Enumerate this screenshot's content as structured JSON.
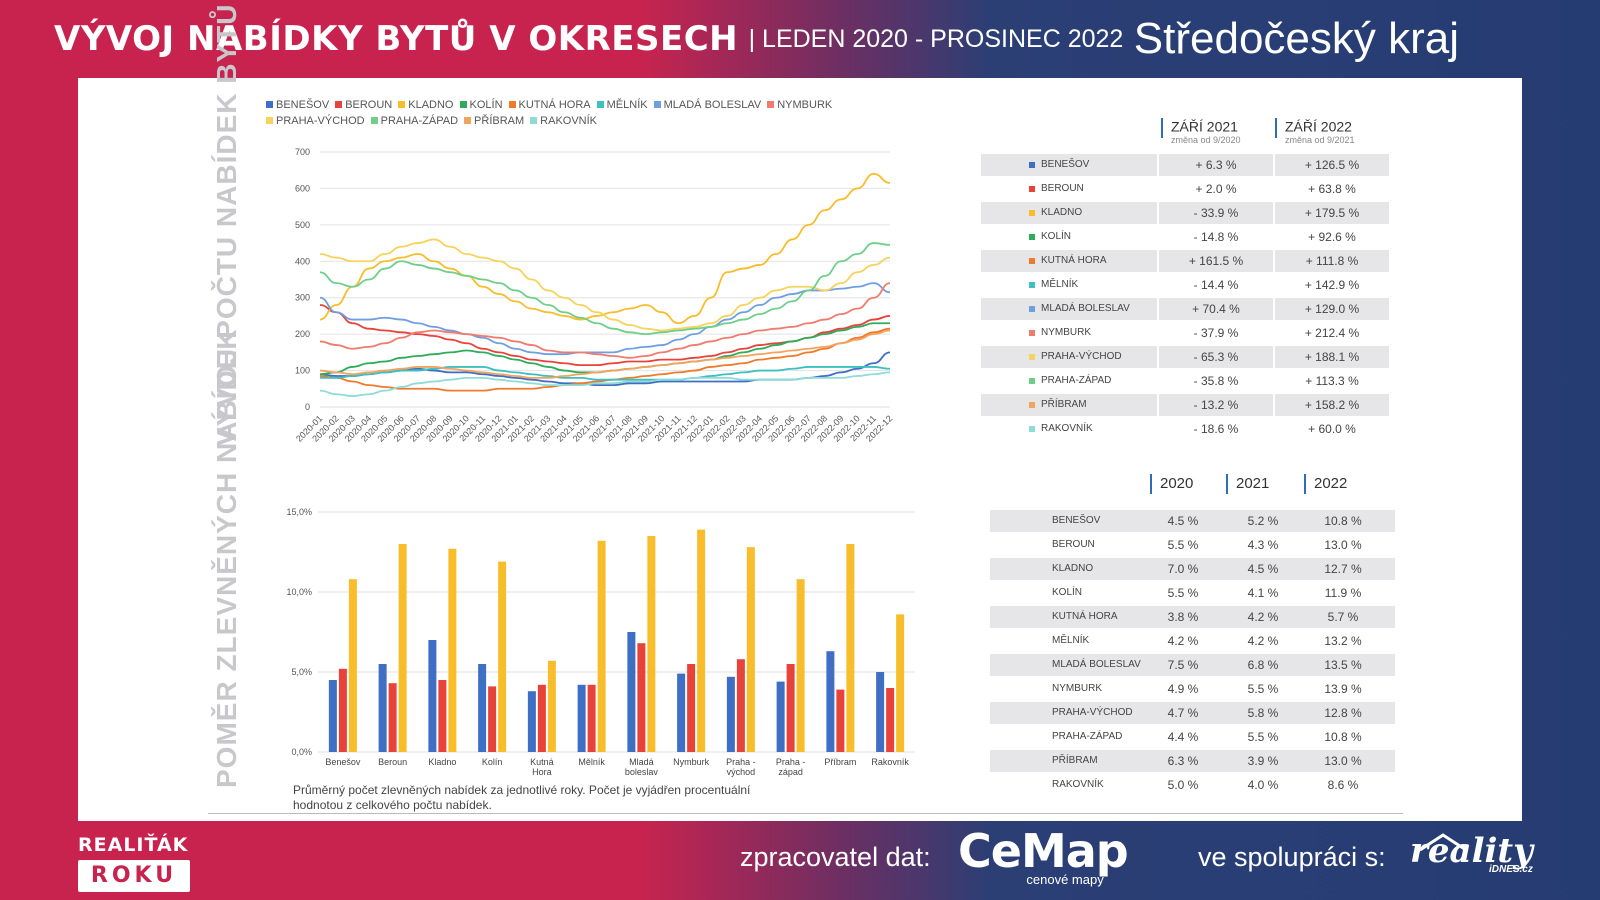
{
  "header": {
    "title": "VÝVOJ NABÍDKY BYTŮ V OKRESECH",
    "period": "| LEDEN 2020 - PROSINEC 2022",
    "region": "Středočeský kraj"
  },
  "side_titles": {
    "top": "VÝVOJ POČTU NABÍDEK BYTŮ V INZERCI",
    "bottom": "POMĚR ZLEVNĚNÝCH NABÍDEK"
  },
  "colors": {
    "BENEŠOV": "#3f6fc4",
    "BEROUN": "#e8433b",
    "KLADNO": "#f7bd2b",
    "KOLÍN": "#2eab5b",
    "KUTNÁ HORA": "#f07a2c",
    "MĚLNÍK": "#3cc0c0",
    "MLADÁ BOLESLAV": "#6f9fe0",
    "NYMBURK": "#f07b6e",
    "PRAHA-VÝCHOD": "#f6d35c",
    "PRAHA-ZÁPAD": "#6fcf8a",
    "PŘÍBRAM": "#f4a35f",
    "RAKOVNÍK": "#8fdbd8"
  },
  "chart_data": [
    {
      "type": "line",
      "ylim": [
        0,
        700
      ],
      "y_ticks": [
        "0",
        "100",
        "200",
        "300",
        "400",
        "500",
        "600",
        "700"
      ],
      "x": [
        "2020-01",
        "2020-02",
        "2020-03",
        "2020-04",
        "2020-05",
        "2020-06",
        "2020-07",
        "2020-08",
        "2020-09",
        "2020-10",
        "2020-11",
        "2020-12",
        "2021-01",
        "2021-02",
        "2021-03",
        "2021-04",
        "2021-05",
        "2021-06",
        "2021-07",
        "2021-08",
        "2021-09",
        "2021-10",
        "2021-11",
        "2021-12",
        "2022-01",
        "2022-02",
        "2022-03",
        "2022-04",
        "2022-05",
        "2022-06",
        "2022-07",
        "2022-08",
        "2022-09",
        "2022-10",
        "2022-11",
        "2022-12"
      ],
      "legend": [
        "BENEŠOV",
        "BEROUN",
        "KLADNO",
        "KOLÍN",
        "KUTNÁ HORA",
        "MĚLNÍK",
        "MLADÁ BOLESLAV",
        "NYMBURK",
        "PRAHA-VÝCHOD",
        "PRAHA-ZÁPAD",
        "PŘÍBRAM",
        "RAKOVNÍK"
      ],
      "series": [
        {
          "name": "BENEŠOV",
          "values": [
            90,
            85,
            85,
            90,
            95,
            100,
            105,
            100,
            95,
            95,
            90,
            85,
            80,
            75,
            70,
            65,
            65,
            60,
            60,
            65,
            65,
            70,
            70,
            70,
            70,
            70,
            70,
            75,
            75,
            75,
            80,
            85,
            95,
            105,
            120,
            150
          ]
        },
        {
          "name": "BEROUN",
          "values": [
            280,
            260,
            230,
            215,
            210,
            205,
            200,
            195,
            185,
            175,
            160,
            150,
            140,
            130,
            125,
            120,
            115,
            115,
            120,
            125,
            125,
            130,
            130,
            135,
            140,
            150,
            160,
            170,
            175,
            180,
            190,
            205,
            215,
            225,
            240,
            250
          ]
        },
        {
          "name": "KLADNO",
          "values": [
            240,
            280,
            330,
            380,
            400,
            410,
            420,
            400,
            380,
            360,
            330,
            310,
            290,
            270,
            260,
            250,
            240,
            250,
            260,
            270,
            280,
            260,
            230,
            250,
            300,
            370,
            380,
            390,
            420,
            460,
            500,
            540,
            570,
            600,
            640,
            615
          ]
        },
        {
          "name": "KOLÍN",
          "values": [
            90,
            95,
            110,
            120,
            125,
            135,
            140,
            145,
            150,
            155,
            150,
            140,
            130,
            120,
            110,
            100,
            95,
            95,
            100,
            105,
            110,
            115,
            120,
            125,
            130,
            140,
            150,
            160,
            170,
            180,
            190,
            200,
            210,
            220,
            230,
            230
          ]
        },
        {
          "name": "KUTNÁ HORA",
          "values": [
            85,
            80,
            70,
            60,
            55,
            50,
            50,
            50,
            45,
            45,
            45,
            50,
            50,
            50,
            55,
            60,
            65,
            70,
            75,
            80,
            85,
            90,
            95,
            100,
            110,
            115,
            120,
            130,
            135,
            140,
            150,
            160,
            175,
            190,
            205,
            215
          ]
        },
        {
          "name": "MĚLNÍK",
          "values": [
            80,
            80,
            85,
            90,
            95,
            100,
            100,
            105,
            110,
            110,
            110,
            100,
            95,
            90,
            85,
            80,
            80,
            75,
            75,
            75,
            75,
            75,
            75,
            80,
            85,
            90,
            95,
            100,
            100,
            105,
            110,
            110,
            110,
            110,
            110,
            105
          ]
        },
        {
          "name": "MLADÁ BOLESLAV",
          "values": [
            300,
            260,
            240,
            240,
            245,
            240,
            230,
            220,
            210,
            200,
            190,
            175,
            160,
            150,
            145,
            145,
            150,
            150,
            150,
            160,
            165,
            170,
            185,
            200,
            220,
            240,
            260,
            280,
            300,
            310,
            320,
            320,
            325,
            330,
            340,
            315
          ]
        },
        {
          "name": "NYMBURK",
          "values": [
            180,
            170,
            160,
            165,
            175,
            190,
            205,
            210,
            205,
            200,
            195,
            190,
            180,
            170,
            155,
            150,
            150,
            145,
            140,
            135,
            140,
            150,
            160,
            170,
            180,
            190,
            200,
            210,
            215,
            220,
            230,
            240,
            255,
            270,
            300,
            340
          ]
        },
        {
          "name": "PRAHA-VÝCHOD",
          "values": [
            420,
            410,
            400,
            400,
            420,
            440,
            450,
            460,
            440,
            420,
            410,
            400,
            380,
            350,
            320,
            300,
            280,
            260,
            240,
            225,
            215,
            210,
            215,
            220,
            230,
            250,
            280,
            300,
            320,
            330,
            330,
            320,
            340,
            370,
            390,
            410
          ]
        },
        {
          "name": "PRAHA-ZÁPAD",
          "values": [
            370,
            340,
            330,
            350,
            380,
            400,
            390,
            380,
            370,
            360,
            350,
            340,
            320,
            300,
            280,
            260,
            245,
            230,
            215,
            205,
            200,
            205,
            210,
            215,
            220,
            230,
            240,
            255,
            270,
            290,
            320,
            360,
            400,
            420,
            450,
            445
          ]
        },
        {
          "name": "PŘÍBRAM",
          "values": [
            100,
            95,
            90,
            95,
            100,
            105,
            110,
            110,
            105,
            100,
            95,
            90,
            85,
            80,
            80,
            85,
            90,
            95,
            100,
            105,
            110,
            115,
            120,
            125,
            130,
            135,
            140,
            145,
            150,
            155,
            160,
            165,
            175,
            185,
            200,
            210
          ]
        },
        {
          "name": "RAKOVNÍK",
          "values": [
            45,
            35,
            30,
            35,
            45,
            55,
            65,
            70,
            75,
            80,
            80,
            75,
            70,
            65,
            60,
            60,
            60,
            65,
            65,
            70,
            70,
            75,
            75,
            80,
            80,
            80,
            75,
            75,
            75,
            75,
            80,
            80,
            80,
            85,
            90,
            95
          ]
        }
      ]
    },
    {
      "type": "bar",
      "ylim": [
        0,
        15
      ],
      "y_ticks": [
        "0,0%",
        "5,0%",
        "10,0%",
        "15,0%"
      ],
      "categories": [
        [
          "Benešov"
        ],
        [
          "Beroun"
        ],
        [
          "Kladno"
        ],
        [
          "Kolín"
        ],
        [
          "Kutná",
          "Hora"
        ],
        [
          "Mělník"
        ],
        [
          "Mladá",
          "boleslav"
        ],
        [
          "Nymburk"
        ],
        [
          "Praha -",
          "východ"
        ],
        [
          "Praha -",
          "západ"
        ],
        [
          "Příbram"
        ],
        [
          "Rakovník"
        ]
      ],
      "series": [
        {
          "name": "2020",
          "color": "#3f6fc4",
          "values": [
            4.5,
            5.5,
            7.0,
            5.5,
            3.8,
            4.2,
            7.5,
            4.9,
            4.7,
            4.4,
            6.3,
            5.0
          ]
        },
        {
          "name": "2021",
          "color": "#e8433b",
          "values": [
            5.2,
            4.3,
            4.5,
            4.1,
            4.2,
            4.2,
            6.8,
            5.5,
            5.8,
            5.5,
            3.9,
            4.0
          ]
        },
        {
          "name": "2022",
          "color": "#f7bd2b",
          "values": [
            10.8,
            13.0,
            12.7,
            11.9,
            5.7,
            13.2,
            13.5,
            13.9,
            12.8,
            10.8,
            13.0,
            8.6
          ]
        }
      ]
    },
    {
      "type": "table",
      "columns": [
        {
          "label": "ZÁŘÍ 2021",
          "sub": "změna od 9/2020"
        },
        {
          "label": "ZÁŘÍ 2022",
          "sub": "změna od 9/2021"
        }
      ],
      "rows": [
        {
          "name": "BENEŠOV",
          "a": "+ 6.3 %",
          "b": "+ 126.5 %"
        },
        {
          "name": "BEROUN",
          "a": "+ 2.0 %",
          "b": "+ 63.8 %"
        },
        {
          "name": "KLADNO",
          "a": "- 33.9 %",
          "b": "+ 179.5 %"
        },
        {
          "name": "KOLÍN",
          "a": "- 14.8 %",
          "b": "+ 92.6 %"
        },
        {
          "name": "KUTNÁ HORA",
          "a": "+ 161.5 %",
          "b": "+ 111.8 %"
        },
        {
          "name": "MĚLNÍK",
          "a": "- 14.4 %",
          "b": "+ 142.9 %"
        },
        {
          "name": "MLADÁ BOLESLAV",
          "a": "+ 70.4 %",
          "b": "+ 129.0 %"
        },
        {
          "name": "NYMBURK",
          "a": "- 37.9 %",
          "b": "+ 212.4 %"
        },
        {
          "name": "PRAHA-VÝCHOD",
          "a": "- 65.3 %",
          "b": "+ 188.1 %"
        },
        {
          "name": "PRAHA-ZÁPAD",
          "a": "- 35.8 %",
          "b": "+ 113.3 %"
        },
        {
          "name": "PŘÍBRAM",
          "a": "- 13.2 %",
          "b": "+ 158.2 %"
        },
        {
          "name": "RAKOVNÍK",
          "a": "- 18.6 %",
          "b": "+ 60.0 %"
        }
      ]
    },
    {
      "type": "table",
      "columns": [
        "2020",
        "2021",
        "2022"
      ],
      "rows": [
        {
          "name": "BENEŠOV",
          "v": [
            "4.5 %",
            "5.2 %",
            "10.8 %"
          ]
        },
        {
          "name": "BEROUN",
          "v": [
            "5.5 %",
            "4.3 %",
            "13.0 %"
          ]
        },
        {
          "name": "KLADNO",
          "v": [
            "7.0 %",
            "4.5 %",
            "12.7 %"
          ]
        },
        {
          "name": "KOLÍN",
          "v": [
            "5.5 %",
            "4.1 %",
            "11.9 %"
          ]
        },
        {
          "name": "KUTNÁ HORA",
          "v": [
            "3.8 %",
            "4.2 %",
            "5.7 %"
          ]
        },
        {
          "name": "MĚLNÍK",
          "v": [
            "4.2 %",
            "4.2 %",
            "13.2 %"
          ]
        },
        {
          "name": "MLADÁ BOLESLAV",
          "v": [
            "7.5 %",
            "6.8 %",
            "13.5 %"
          ]
        },
        {
          "name": "NYMBURK",
          "v": [
            "4.9 %",
            "5.5 %",
            "13.9 %"
          ]
        },
        {
          "name": "PRAHA-VÝCHOD",
          "v": [
            "4.7 %",
            "5.8 %",
            "12.8 %"
          ]
        },
        {
          "name": "PRAHA-ZÁPAD",
          "v": [
            "4.4 %",
            "5.5 %",
            "10.8 %"
          ]
        },
        {
          "name": "PŘÍBRAM",
          "v": [
            "6.3 %",
            "3.9 %",
            "13.0 %"
          ]
        },
        {
          "name": "RAKOVNÍK",
          "v": [
            "5.0 %",
            "4.0 %",
            "8.6 %"
          ]
        }
      ]
    }
  ],
  "footnote": "Průměrný počet zlevněných nabídek za jednotlivé roky. Počet je vyjádřen procentuální hodnotou z celkového počtu nabídek.",
  "footer": {
    "badge_top": "REALIŤÁK",
    "badge_bottom": "ROKU",
    "processor_label": "zpracovatel dat:",
    "cemap_logo": "CeMap",
    "cemap_sub": "cenové mapy",
    "partner_label": "ve spolupráci s:",
    "reality_logo": "reality",
    "reality_sub": "iDNES.cz"
  }
}
